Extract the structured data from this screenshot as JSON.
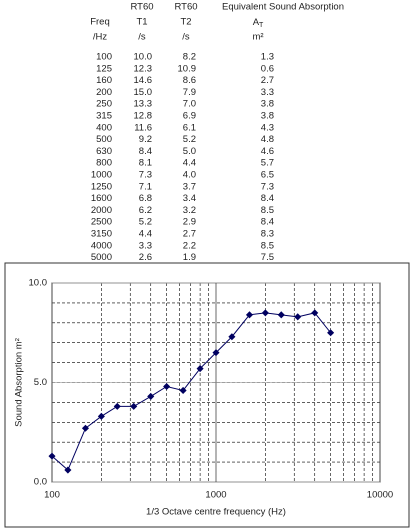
{
  "table": {
    "header": [
      [
        "",
        "RT60",
        "RT60",
        "Equivalent Sound Absorption"
      ],
      [
        "Freq",
        "T1",
        "T2",
        {
          "main": "A",
          "sub": "T"
        }
      ],
      [
        "/Hz",
        "/s",
        "/s",
        "m²"
      ]
    ],
    "rows": [
      [
        100,
        10.0,
        8.2,
        1.3
      ],
      [
        125,
        12.3,
        10.9,
        0.6
      ],
      [
        160,
        14.6,
        8.6,
        2.7
      ],
      [
        200,
        15.0,
        7.9,
        3.3
      ],
      [
        250,
        13.3,
        7.0,
        3.8
      ],
      [
        315,
        12.8,
        6.9,
        3.8
      ],
      [
        400,
        11.6,
        6.1,
        4.3
      ],
      [
        500,
        9.2,
        5.2,
        4.8
      ],
      [
        630,
        8.4,
        5.0,
        4.6
      ],
      [
        800,
        8.1,
        4.4,
        5.7
      ],
      [
        1000,
        7.3,
        4.0,
        6.5
      ],
      [
        1250,
        7.1,
        3.7,
        7.3
      ],
      [
        1600,
        6.8,
        3.4,
        8.4
      ],
      [
        2000,
        6.2,
        3.2,
        8.5
      ],
      [
        2500,
        5.2,
        2.9,
        8.4
      ],
      [
        3150,
        4.4,
        2.7,
        8.3
      ],
      [
        4000,
        3.3,
        2.2,
        8.5
      ],
      [
        5000,
        2.6,
        1.9,
        7.5
      ]
    ],
    "row_labels": [
      [
        "100",
        "10.0",
        "8.2",
        "1.3"
      ],
      [
        "125",
        "12.3",
        "10.9",
        "0.6"
      ],
      [
        "160",
        "14.6",
        "8.6",
        "2.7"
      ],
      [
        "200",
        "15.0",
        "7.9",
        "3.3"
      ],
      [
        "250",
        "13.3",
        "7.0",
        "3.8"
      ],
      [
        "315",
        "12.8",
        "6.9",
        "3.8"
      ],
      [
        "400",
        "11.6",
        "6.1",
        "4.3"
      ],
      [
        "500",
        "9.2",
        "5.2",
        "4.8"
      ],
      [
        "630",
        "8.4",
        "5.0",
        "4.6"
      ],
      [
        "800",
        "8.1",
        "4.4",
        "5.7"
      ],
      [
        "1000",
        "7.3",
        "4.0",
        "6.5"
      ],
      [
        "1250",
        "7.1",
        "3.7",
        "7.3"
      ],
      [
        "1600",
        "6.8",
        "3.4",
        "8.4"
      ],
      [
        "2000",
        "6.2",
        "3.2",
        "8.5"
      ],
      [
        "2500",
        "5.2",
        "2.9",
        "8.4"
      ],
      [
        "3150",
        "4.4",
        "2.7",
        "8.3"
      ],
      [
        "4000",
        "3.3",
        "2.2",
        "8.5"
      ],
      [
        "5000",
        "2.6",
        "1.9",
        "7.5"
      ]
    ]
  },
  "chart_data": {
    "type": "line",
    "x_label": "1/3 Octave centre frequency (Hz)",
    "y_label": "Sound Absorption m²",
    "x": [
      100,
      125,
      160,
      200,
      250,
      315,
      400,
      500,
      630,
      800,
      1000,
      1250,
      1600,
      2000,
      2500,
      3150,
      4000,
      5000
    ],
    "values": [
      1.3,
      0.6,
      2.7,
      3.3,
      3.8,
      3.8,
      4.3,
      4.8,
      4.6,
      5.7,
      6.5,
      7.3,
      8.4,
      8.5,
      8.4,
      8.3,
      8.5,
      7.5
    ],
    "color": "#000060",
    "x_log": true,
    "xlim": [
      100,
      10000
    ],
    "xticks": [
      100,
      1000,
      10000
    ],
    "ylim": [
      0,
      10
    ],
    "yticks": [
      {
        "value": 0,
        "label": "0.0"
      },
      {
        "value": 5,
        "label": "5.0"
      },
      {
        "value": 10,
        "label": "10.0"
      }
    ],
    "grid": true
  }
}
